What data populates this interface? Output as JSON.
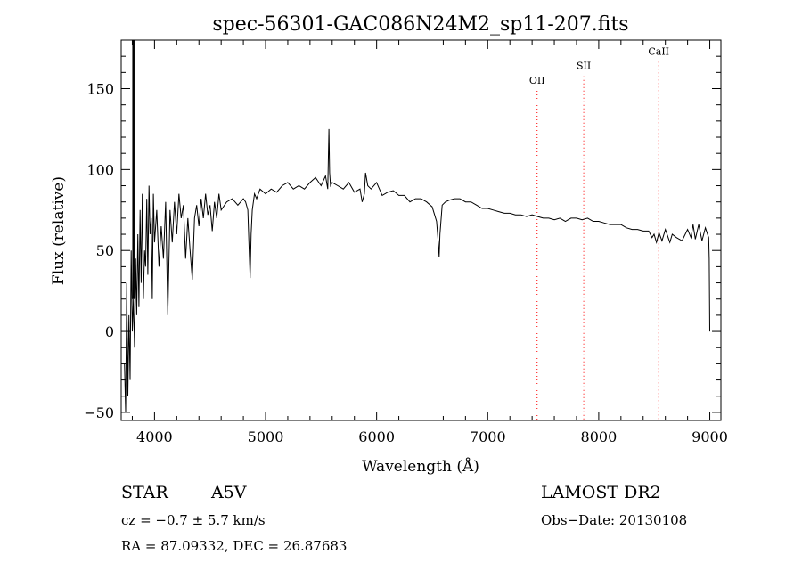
{
  "chart_data": {
    "type": "line",
    "title": "spec-56301-GAC086N24M2_sp11-207.fits",
    "xlabel": "Wavelength (Å)",
    "ylabel": "Flux (relative)",
    "xlim": [
      3700,
      9100
    ],
    "ylim": [
      -55,
      180
    ],
    "xticks": [
      4000,
      5000,
      6000,
      7000,
      8000,
      9000
    ],
    "yticks": [
      -50,
      0,
      50,
      100,
      150
    ],
    "grid": false,
    "line_color": "#000000",
    "marker_color": "#ff0000",
    "series": [
      {
        "x": [
          3730,
          3740,
          3750,
          3760,
          3770,
          3780,
          3790,
          3800,
          3810,
          3820,
          3830,
          3840,
          3850,
          3860,
          3870,
          3880,
          3890,
          3900,
          3910,
          3920,
          3930,
          3940,
          3950,
          3960,
          3970,
          3980,
          3990,
          4000,
          4020,
          4040,
          4060,
          4080,
          4100,
          4120,
          4140,
          4160,
          4180,
          4200,
          4220,
          4240,
          4260,
          4280,
          4300,
          4320,
          4340,
          4360,
          4380,
          4400,
          4420,
          4440,
          4460,
          4480,
          4500,
          4520,
          4540,
          4560,
          4580,
          4600,
          4650,
          4700,
          4750,
          4800,
          4820,
          4840,
          4850,
          4861,
          4870,
          4880,
          4900,
          4920,
          4950,
          5000,
          5050,
          5100,
          5150,
          5200,
          5250,
          5300,
          5350,
          5400,
          5450,
          5500,
          5540,
          5560,
          5570,
          5577,
          5585,
          5600,
          5650,
          5700,
          5750,
          5800,
          5850,
          5870,
          5890,
          5900,
          5920,
          5950,
          6000,
          6050,
          6100,
          6150,
          6200,
          6250,
          6300,
          6350,
          6400,
          6450,
          6500,
          6540,
          6555,
          6563,
          6570,
          6590,
          6620,
          6650,
          6700,
          6750,
          6800,
          6850,
          6900,
          6950,
          7000,
          7050,
          7100,
          7150,
          7200,
          7250,
          7300,
          7350,
          7400,
          7450,
          7500,
          7550,
          7600,
          7650,
          7700,
          7750,
          7800,
          7850,
          7900,
          7950,
          8000,
          8050,
          8100,
          8150,
          8200,
          8250,
          8300,
          8350,
          8400,
          8450,
          8480,
          8498,
          8520,
          8542,
          8570,
          8600,
          8640,
          8662,
          8700,
          8750,
          8800,
          8830,
          8850,
          8870,
          8900,
          8930,
          8960,
          8980,
          8990,
          8995,
          9000
        ],
        "y": [
          -20,
          -50,
          30,
          -40,
          10,
          -30,
          50,
          0,
          20,
          -10,
          45,
          10,
          60,
          15,
          75,
          30,
          85,
          20,
          50,
          40,
          82,
          35,
          90,
          60,
          70,
          20,
          85,
          55,
          75,
          40,
          65,
          45,
          80,
          10,
          75,
          55,
          80,
          60,
          85,
          70,
          78,
          45,
          70,
          50,
          32,
          70,
          78,
          65,
          82,
          70,
          85,
          72,
          78,
          62,
          80,
          70,
          85,
          75,
          80,
          82,
          78,
          82,
          80,
          75,
          55,
          33,
          60,
          75,
          85,
          82,
          88,
          85,
          88,
          86,
          90,
          92,
          88,
          90,
          88,
          92,
          95,
          90,
          96,
          88,
          125,
          98,
          90,
          92,
          90,
          88,
          92,
          86,
          88,
          80,
          85,
          98,
          90,
          88,
          92,
          84,
          86,
          87,
          84,
          84,
          80,
          82,
          82,
          80,
          77,
          68,
          55,
          46,
          60,
          78,
          80,
          81,
          82,
          82,
          80,
          80,
          78,
          76,
          76,
          75,
          74,
          73,
          73,
          72,
          72,
          71,
          72,
          71,
          70,
          70,
          69,
          70,
          68,
          70,
          70,
          69,
          70,
          68,
          68,
          67,
          66,
          66,
          66,
          64,
          63,
          63,
          62,
          62,
          58,
          60,
          55,
          61,
          56,
          63,
          55,
          60,
          58,
          56,
          63,
          58,
          66,
          57,
          66,
          56,
          64,
          60,
          58,
          45,
          0
        ]
      }
    ],
    "annotations": [
      {
        "text": "OII",
        "x": 7445,
        "label_y": 153
      },
      {
        "text": "SII",
        "x": 7865,
        "label_y": 162
      },
      {
        "text": "CaII",
        "x": 8540,
        "label_y": 171
      }
    ]
  },
  "footer": {
    "class": "STAR",
    "subclass": "A5V",
    "cz": "cz = −0.7 ± 5.7 km/s",
    "coords": "RA =  87.09332, DEC =  26.87683",
    "survey": "LAMOST DR2",
    "obs_date": "Obs−Date: 20130108"
  }
}
